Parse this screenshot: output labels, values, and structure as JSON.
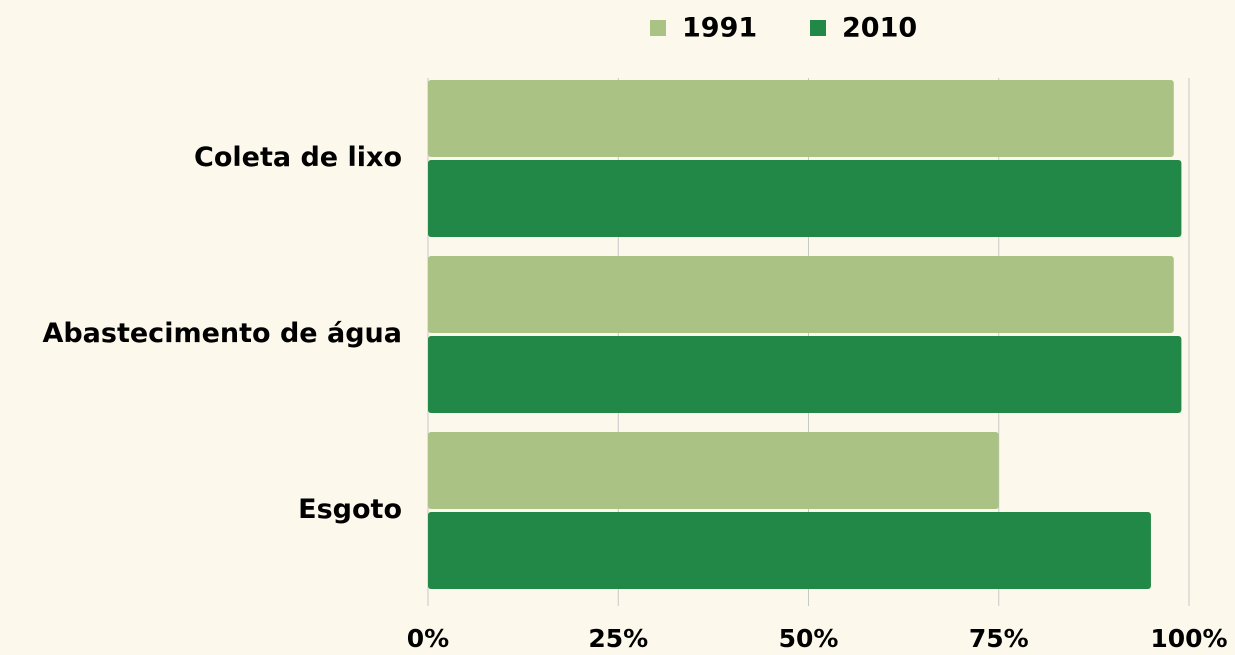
{
  "chart_data": {
    "type": "barh",
    "categories": [
      "Coleta de lixo",
      "Abastecimento de água",
      "Esgoto"
    ],
    "series": [
      {
        "name": "1991",
        "color": "#aac283",
        "values": [
          98,
          98,
          75
        ]
      },
      {
        "name": "2010",
        "color": "#228847",
        "values": [
          99,
          99,
          95
        ]
      }
    ],
    "xlim": [
      0,
      100
    ],
    "xticks": [
      {
        "value": 0,
        "label": "0%"
      },
      {
        "value": 25,
        "label": "25%"
      },
      {
        "value": 50,
        "label": "50%"
      },
      {
        "value": 75,
        "label": "75%"
      },
      {
        "value": 100,
        "label": "100%"
      }
    ],
    "grid": true,
    "legend": "top"
  }
}
